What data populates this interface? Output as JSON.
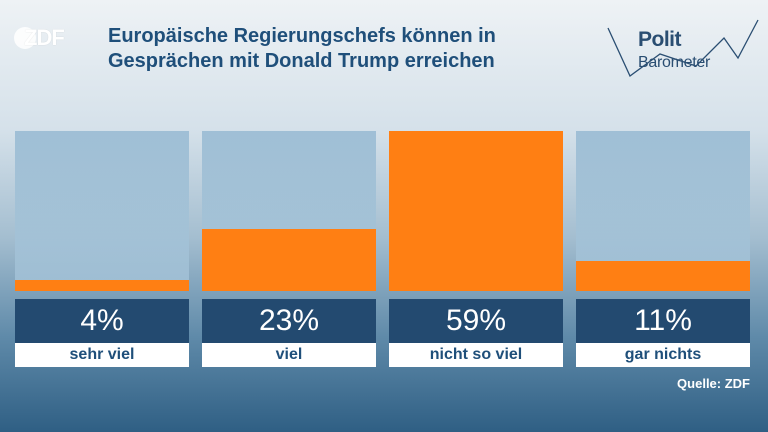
{
  "logo": {
    "text": "ZDF"
  },
  "title": {
    "line1": "Europäische Regierungschefs können in",
    "line2": "Gesprächen mit Donald Trump erreichen"
  },
  "brand": {
    "word1": "Polit",
    "word2": "Barometer"
  },
  "colors": {
    "bar": "#ff7f13",
    "value_box": "#234a70",
    "title": "#1f4f7a"
  },
  "chart_data": {
    "type": "bar",
    "title": "Europäische Regierungschefs können in Gesprächen mit Donald Trump erreichen",
    "categories": [
      "sehr viel",
      "viel",
      "nicht so viel",
      "gar nichts"
    ],
    "values": [
      4,
      23,
      59,
      11
    ],
    "value_labels": [
      "4%",
      "23%",
      "59%",
      "11%"
    ],
    "unit": "%",
    "ylim": [
      0,
      59
    ],
    "grid": false,
    "legend": "none"
  },
  "source": "Quelle: ZDF"
}
